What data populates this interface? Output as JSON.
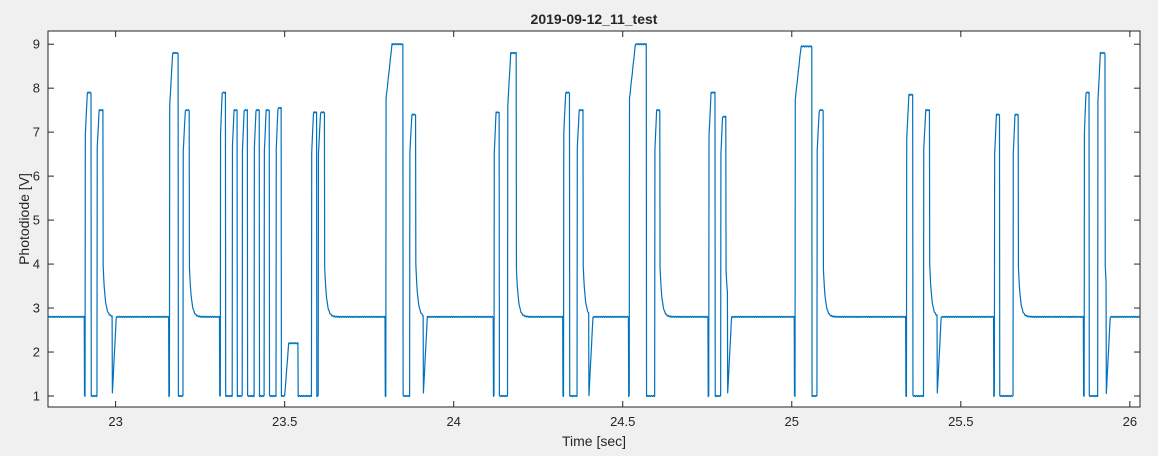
{
  "chart_data": {
    "type": "line",
    "title": "2019-09-12_11_test",
    "xlabel": "Time [sec]",
    "ylabel": "Photodiode [V]",
    "xlim": [
      22.8,
      26.03
    ],
    "ylim": [
      0.75,
      9.3
    ],
    "xticks": [
      23,
      23.5,
      24,
      24.5,
      25,
      25.5,
      26
    ],
    "xtick_labels": [
      "23",
      "23.5",
      "24",
      "24.5",
      "25",
      "25.5",
      "26"
    ],
    "yticks": [
      1,
      2,
      3,
      4,
      5,
      6,
      7,
      8,
      9
    ],
    "ytick_labels": [
      "1",
      "2",
      "3",
      "4",
      "5",
      "6",
      "7",
      "8",
      "9"
    ],
    "grid": false,
    "line_color": "#0072bd",
    "series": [
      {
        "baseline": 2.8,
        "low": 1.0,
        "pulses": [
          [
            22.91,
            0.018,
            7.9
          ],
          [
            22.945,
            0.018,
            7.5
          ],
          [
            23.16,
            0.025,
            8.8
          ],
          [
            23.2,
            0.018,
            7.5
          ],
          [
            23.31,
            0.015,
            7.9
          ],
          [
            23.345,
            0.015,
            7.5
          ],
          [
            23.375,
            0.015,
            7.5
          ],
          [
            23.41,
            0.015,
            7.5
          ],
          [
            23.44,
            0.015,
            7.5
          ],
          [
            23.475,
            0.015,
            7.55
          ],
          [
            23.58,
            0.015,
            7.45
          ],
          [
            23.6,
            0.018,
            7.45
          ],
          [
            23.8,
            0.05,
            9.0
          ],
          [
            23.87,
            0.018,
            7.4
          ],
          [
            24.12,
            0.015,
            7.45
          ],
          [
            24.16,
            0.025,
            8.8
          ],
          [
            24.325,
            0.018,
            7.9
          ],
          [
            24.365,
            0.018,
            7.5
          ],
          [
            24.52,
            0.05,
            9.0
          ],
          [
            24.595,
            0.015,
            7.5
          ],
          [
            24.755,
            0.018,
            7.9
          ],
          [
            24.79,
            0.015,
            7.35
          ],
          [
            25.01,
            0.05,
            8.95
          ],
          [
            25.075,
            0.018,
            7.5
          ],
          [
            25.34,
            0.018,
            7.85
          ],
          [
            25.39,
            0.018,
            7.5
          ],
          [
            25.6,
            0.015,
            7.4
          ],
          [
            25.655,
            0.015,
            7.4
          ],
          [
            25.865,
            0.015,
            7.9
          ],
          [
            25.905,
            0.022,
            8.8
          ]
        ],
        "mid_plateaus": [
          [
            22.99,
            23.14,
            2.8
          ],
          [
            23.5,
            23.54,
            2.2
          ],
          [
            23.91,
            24.1,
            2.8
          ],
          [
            24.4,
            24.51,
            2.8
          ],
          [
            24.81,
            24.98,
            2.8
          ],
          [
            25.43,
            25.58,
            2.8
          ],
          [
            25.93,
            26.03,
            2.8
          ]
        ]
      }
    ]
  }
}
